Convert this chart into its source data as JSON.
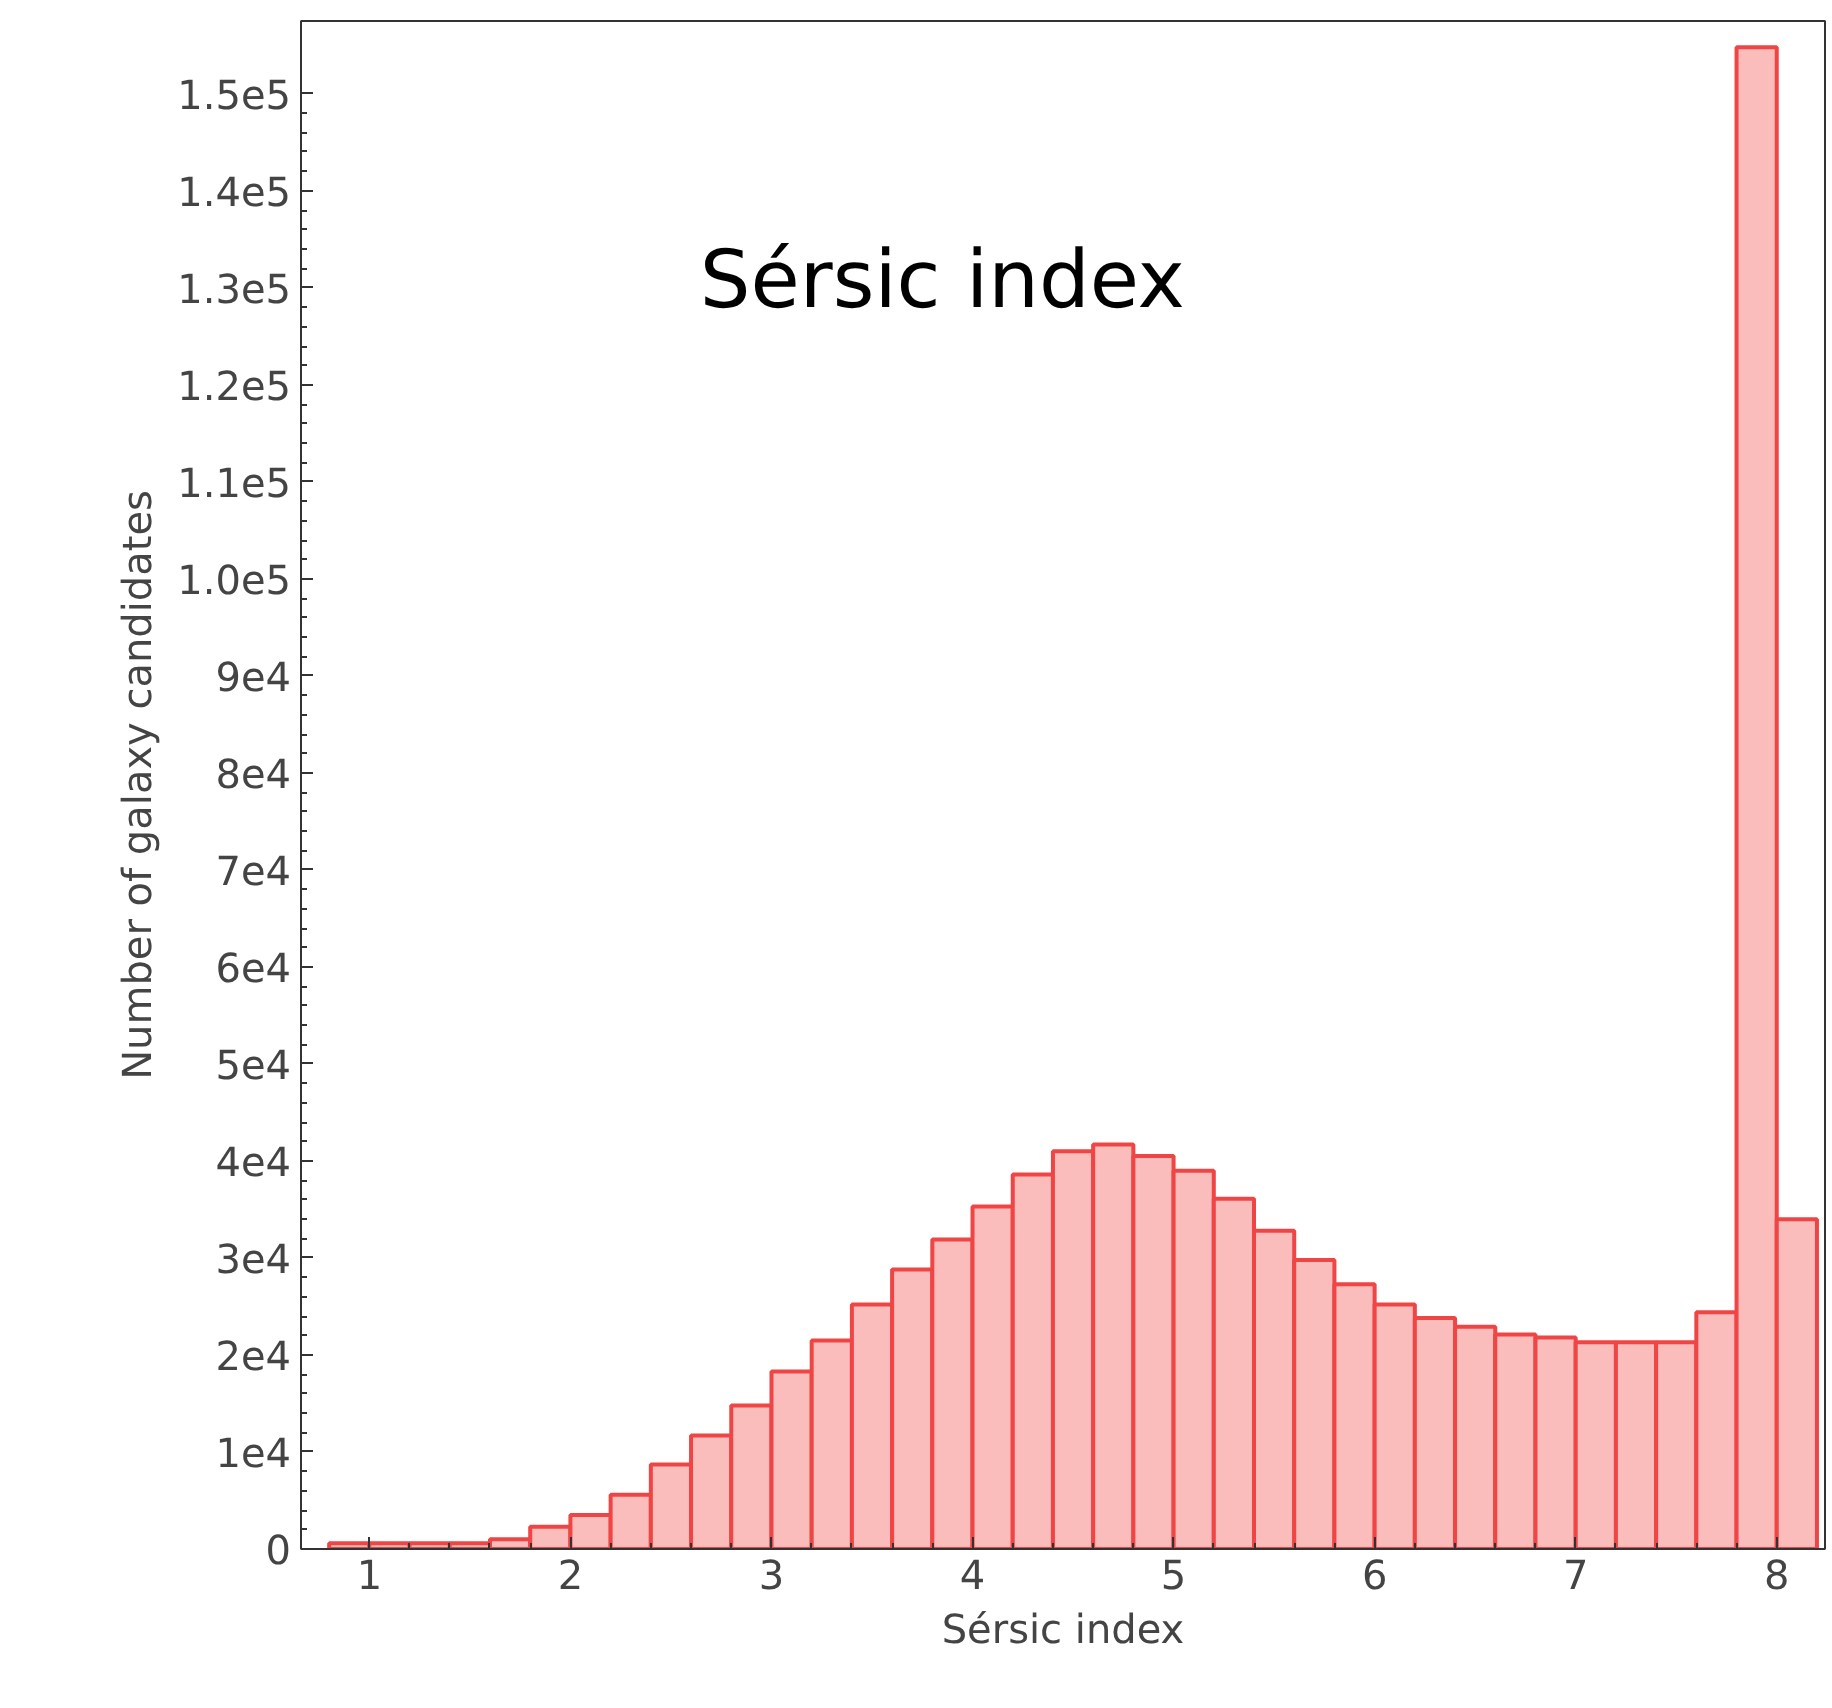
{
  "chart_data": {
    "type": "histogram",
    "title": "Sérsic index",
    "xlabel": "Sérsic index",
    "ylabel": "Number of galaxy candidates",
    "bins": [
      0.8,
      1.0,
      1.2,
      1.4,
      1.6,
      1.8,
      2.0,
      2.2,
      2.4,
      2.6,
      2.8,
      3.0,
      3.2,
      3.4,
      3.6,
      3.8,
      4.0,
      4.2,
      4.4,
      4.6,
      4.8,
      5.0,
      5.2,
      5.4,
      5.6,
      5.8,
      6.0,
      6.2,
      6.4,
      6.6,
      6.8,
      7.0,
      7.2,
      7.4,
      7.6,
      7.8,
      8.0,
      8.2
    ],
    "values": [
      600,
      600,
      600,
      600,
      1000,
      2300,
      3500,
      5600,
      8700,
      11700,
      14800,
      18300,
      21500,
      25200,
      28800,
      31900,
      35300,
      38600,
      41000,
      41700,
      40500,
      39000,
      36100,
      32800,
      29800,
      27300,
      25200,
      23800,
      22900,
      22100,
      21800,
      21300,
      21300,
      21300,
      24400,
      154800,
      34000
    ],
    "color": "#fbbcbc",
    "xlim": [
      0.66,
      8.24
    ],
    "ylim": [
      0,
      157500
    ],
    "xticks": [
      1,
      2,
      3,
      4,
      5,
      6,
      7,
      8
    ],
    "yticks": [
      0,
      {
        "value": 10000,
        "label": "1e4"
      },
      {
        "value": 20000,
        "label": "2e4"
      },
      {
        "value": 30000,
        "label": "3e4"
      },
      {
        "value": 40000,
        "label": "4e4"
      },
      {
        "value": 50000,
        "label": "5e4"
      },
      {
        "value": 60000,
        "label": "6e4"
      },
      {
        "value": 70000,
        "label": "7e4"
      },
      {
        "value": 80000,
        "label": "8e4"
      },
      {
        "value": 90000,
        "label": "9e4"
      },
      {
        "value": 100000,
        "label": "1.0e5"
      },
      {
        "value": 110000,
        "label": "1.1e5"
      },
      {
        "value": 120000,
        "label": "1.2e5"
      },
      {
        "value": 130000,
        "label": "1.3e5"
      },
      {
        "value": 140000,
        "label": "1.4e5"
      },
      {
        "value": 150000,
        "label": "1.5e5"
      }
    ],
    "grid": false
  }
}
